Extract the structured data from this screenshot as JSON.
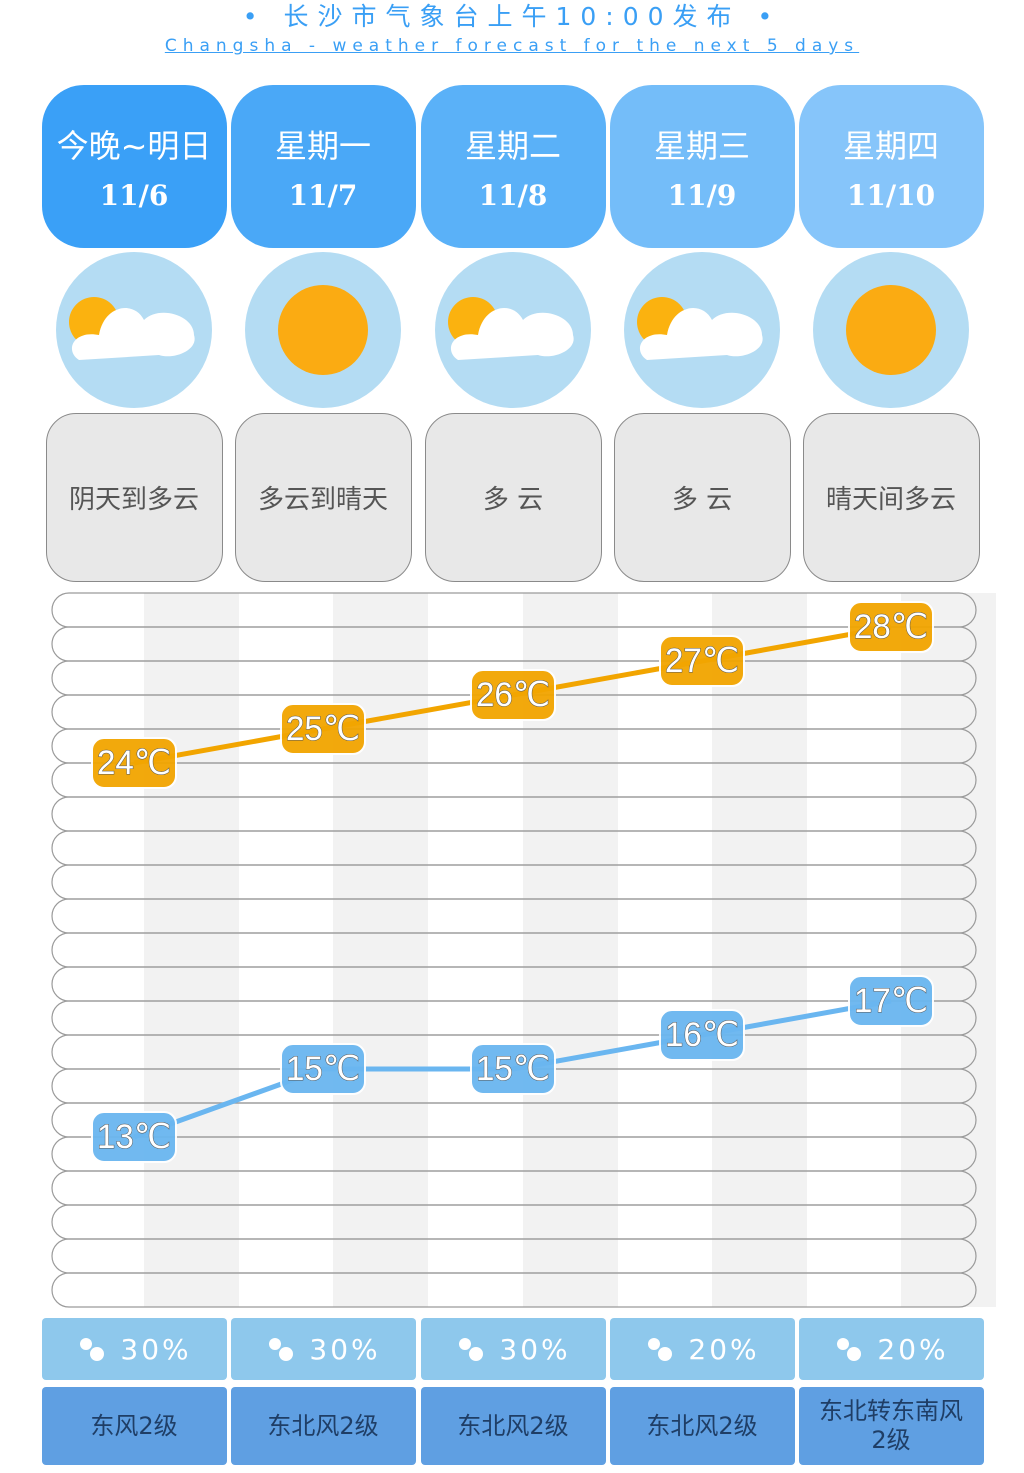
{
  "header": {
    "title": "• 长沙市气象台上午10:00发布 •",
    "subtitle": "Changsha - weather forecast for the next 5 days"
  },
  "days": [
    {
      "name": "今晚~明日",
      "date": "11/6",
      "weather": "阴天到多云",
      "precip": "30%",
      "wind": "东风2级"
    },
    {
      "name": "星期一",
      "date": "11/7",
      "weather": "多云到晴天",
      "precip": "30%",
      "wind": "东北风2级"
    },
    {
      "name": "星期二",
      "date": "11/8",
      "weather": "多 云",
      "precip": "30%",
      "wind": "东北风2级"
    },
    {
      "name": "星期三",
      "date": "11/9",
      "weather": "多 云",
      "precip": "20%",
      "wind": "东北风2级"
    },
    {
      "name": "星期四",
      "date": "11/10",
      "weather": "晴天间多云",
      "precip": "20%",
      "wind": "东北转东南风2级"
    }
  ],
  "chart_data": {
    "type": "line",
    "categories": [
      null,
      null,
      null,
      null,
      null
    ],
    "series": [
      {
        "color": "#f2a500",
        "values": [
          24,
          25,
          26,
          27,
          28
        ],
        "value_labels": [
          "24℃",
          "25℃",
          "26℃",
          "27℃",
          "28℃"
        ]
      },
      {
        "color": "#6ab6f0",
        "values": [
          13,
          15,
          15,
          16,
          17
        ],
        "value_labels": [
          "13℃",
          "15℃",
          "15℃",
          "16℃",
          "17℃"
        ]
      }
    ],
    "ylim": [
      8,
      29
    ]
  }
}
